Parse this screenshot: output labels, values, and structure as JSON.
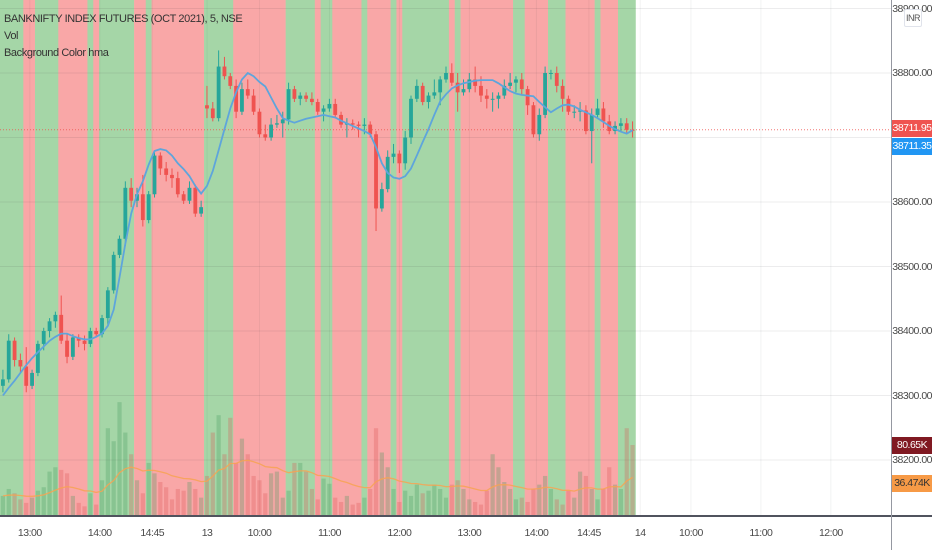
{
  "legend": {
    "symbol": "BANKNIFTY INDEX FUTURES (OCT 2021), 5, NSE",
    "volume": "Vol",
    "indicator": "Background Color hma"
  },
  "price_axis": {
    "currency": "INR",
    "ticks": [
      "38900.00",
      "38800.00",
      "38600.00",
      "38500.00",
      "38400.00",
      "38300.00",
      "38200.00"
    ],
    "last_price": "38711.95",
    "hma_value": "38711.35",
    "volume_value": "80.65K",
    "volume_ma_value": "36.474K"
  },
  "time_axis": {
    "ticks": [
      "13:00",
      "14:00",
      "14:45",
      "13",
      "10:00",
      "11:00",
      "12:00",
      "13:00",
      "14:00",
      "14:45",
      "14",
      "10:00",
      "11:00",
      "12:00"
    ]
  },
  "colors": {
    "bg_bull": "#a5d6a7",
    "bg_bear": "#f9a7a7",
    "candle_up": "#26a69a",
    "candle_down": "#ef5350",
    "hma_line": "#5ea5dc",
    "volume_ma": "#f7a352",
    "last_price_tag": "#ef5350",
    "hma_tag": "#2196f3",
    "volume_tag": "#801922",
    "volume_ma_tag": "#f79a46"
  },
  "chart_data": {
    "type": "candlestick",
    "price_range": [
      38180,
      38920
    ],
    "grid": true,
    "background_runs": [
      [
        "bull",
        4
      ],
      [
        "bear",
        2
      ],
      [
        "bull",
        4
      ],
      [
        "bear",
        5
      ],
      [
        "bull",
        1
      ],
      [
        "bear",
        1
      ],
      [
        "bull",
        6
      ],
      [
        "bear",
        2
      ],
      [
        "bull",
        1
      ],
      [
        "bear",
        9
      ],
      [
        "bull",
        5
      ],
      [
        "bear",
        9
      ],
      [
        "bull",
        5
      ],
      [
        "bear",
        1
      ],
      [
        "bull",
        2
      ],
      [
        "bear",
        5
      ],
      [
        "bull",
        1
      ],
      [
        "bear",
        4
      ],
      [
        "bull",
        1
      ],
      [
        "bear",
        1
      ],
      [
        "bull",
        8
      ],
      [
        "bear",
        1
      ],
      [
        "bull",
        1
      ],
      [
        "bear",
        9
      ],
      [
        "bull",
        2
      ],
      [
        "bear",
        4
      ],
      [
        "bull",
        3
      ],
      [
        "bear",
        5
      ],
      [
        "bull",
        1
      ],
      [
        "bear",
        3
      ],
      [
        "bull",
        3
      ]
    ],
    "ohlc": [
      [
        38315,
        38340,
        38305,
        38325
      ],
      [
        38325,
        38395,
        38320,
        38385
      ],
      [
        38385,
        38390,
        38345,
        38355
      ],
      [
        38355,
        38365,
        38335,
        38345
      ],
      [
        38345,
        38375,
        38305,
        38315
      ],
      [
        38315,
        38340,
        38310,
        38335
      ],
      [
        38335,
        38385,
        38330,
        38380
      ],
      [
        38380,
        38405,
        38370,
        38400
      ],
      [
        38400,
        38420,
        38390,
        38415
      ],
      [
        38415,
        38430,
        38405,
        38425
      ],
      [
        38425,
        38455,
        38380,
        38385
      ],
      [
        38385,
        38395,
        38350,
        38360
      ],
      [
        38360,
        38395,
        38355,
        38390
      ],
      [
        38390,
        38395,
        38375,
        38385
      ],
      [
        38385,
        38393,
        38370,
        38380
      ],
      [
        38380,
        38405,
        38375,
        38400
      ],
      [
        38400,
        38405,
        38390,
        38395
      ],
      [
        38395,
        38425,
        38390,
        38420
      ],
      [
        38420,
        38468,
        38408,
        38463
      ],
      [
        38463,
        38523,
        38458,
        38518
      ],
      [
        38518,
        38548,
        38513,
        38543
      ],
      [
        38543,
        38632,
        38532,
        38622
      ],
      [
        38622,
        38637,
        38592,
        38602
      ],
      [
        38602,
        38622,
        38592,
        38612
      ],
      [
        38612,
        38642,
        38562,
        38572
      ],
      [
        38572,
        38617,
        38567,
        38612
      ],
      [
        38612,
        38677,
        38607,
        38672
      ],
      [
        38672,
        38677,
        38642,
        38652
      ],
      [
        38652,
        38662,
        38632,
        38642
      ],
      [
        38642,
        38652,
        38622,
        38637
      ],
      [
        38637,
        38647,
        38607,
        38612
      ],
      [
        38612,
        38617,
        38597,
        38602
      ],
      [
        38602,
        38632,
        38597,
        38622
      ],
      [
        38622,
        38627,
        38577,
        38582
      ],
      [
        38582,
        38602,
        38577,
        38592
      ],
      [
        38750,
        38780,
        38730,
        38745
      ],
      [
        38745,
        38755,
        38725,
        38730
      ],
      [
        38730,
        38835,
        38725,
        38810
      ],
      [
        38810,
        38825,
        38790,
        38795
      ],
      [
        38795,
        38800,
        38775,
        38780
      ],
      [
        38780,
        38790,
        38730,
        38740
      ],
      [
        38740,
        38785,
        38735,
        38775
      ],
      [
        38775,
        38790,
        38760,
        38765
      ],
      [
        38765,
        38775,
        38735,
        38740
      ],
      [
        38740,
        38745,
        38700,
        38705
      ],
      [
        38705,
        38720,
        38695,
        38700
      ],
      [
        38700,
        38730,
        38695,
        38720
      ],
      [
        38720,
        38735,
        38715,
        38722
      ],
      [
        38722,
        38740,
        38700,
        38728
      ],
      [
        38728,
        38785,
        38720,
        38775
      ],
      [
        38775,
        38780,
        38755,
        38760
      ],
      [
        38760,
        38770,
        38750,
        38765
      ],
      [
        38765,
        38770,
        38755,
        38760
      ],
      [
        38760,
        38770,
        38750,
        38755
      ],
      [
        38755,
        38760,
        38735,
        38740
      ],
      [
        38740,
        38750,
        38725,
        38745
      ],
      [
        38745,
        38760,
        38740,
        38752
      ],
      [
        38752,
        38760,
        38730,
        38735
      ],
      [
        38735,
        38740,
        38715,
        38720
      ],
      [
        38720,
        38730,
        38700,
        38722
      ],
      [
        38722,
        38728,
        38712,
        38720
      ],
      [
        38720,
        38725,
        38700,
        38718
      ],
      [
        38718,
        38730,
        38705,
        38720
      ],
      [
        38720,
        38725,
        38700,
        38705
      ],
      [
        38705,
        38710,
        38555,
        38590
      ],
      [
        38590,
        38630,
        38585,
        38620
      ],
      [
        38620,
        38680,
        38615,
        38670
      ],
      [
        38670,
        38690,
        38660,
        38675
      ],
      [
        38675,
        38680,
        38645,
        38660
      ],
      [
        38660,
        38710,
        38650,
        38700
      ],
      [
        38700,
        38765,
        38690,
        38760
      ],
      [
        38760,
        38790,
        38755,
        38780
      ],
      [
        38780,
        38785,
        38750,
        38755
      ],
      [
        38755,
        38770,
        38745,
        38765
      ],
      [
        38765,
        38790,
        38760,
        38770
      ],
      [
        38770,
        38795,
        38750,
        38790
      ],
      [
        38790,
        38810,
        38785,
        38800
      ],
      [
        38800,
        38815,
        38780,
        38785
      ],
      [
        38785,
        38800,
        38740,
        38770
      ],
      [
        38770,
        38790,
        38765,
        38775
      ],
      [
        38775,
        38800,
        38770,
        38790
      ],
      [
        38790,
        38810,
        38770,
        38780
      ],
      [
        38780,
        38795,
        38755,
        38765
      ],
      [
        38765,
        38775,
        38745,
        38760
      ],
      [
        38760,
        38770,
        38740,
        38760
      ],
      [
        38760,
        38770,
        38745,
        38765
      ],
      [
        38765,
        38790,
        38760,
        38780
      ],
      [
        38780,
        38800,
        38775,
        38785
      ],
      [
        38785,
        38795,
        38770,
        38790
      ],
      [
        38790,
        38800,
        38765,
        38775
      ],
      [
        38775,
        38780,
        38735,
        38750
      ],
      [
        38750,
        38755,
        38700,
        38705
      ],
      [
        38705,
        38745,
        38695,
        38735
      ],
      [
        38735,
        38810,
        38730,
        38800
      ],
      [
        38800,
        38805,
        38790,
        38800
      ],
      [
        38800,
        38810,
        38770,
        38780
      ],
      [
        38780,
        38790,
        38740,
        38760
      ],
      [
        38760,
        38765,
        38735,
        38740
      ],
      [
        38740,
        38750,
        38730,
        38740
      ],
      [
        38740,
        38755,
        38725,
        38742
      ],
      [
        38742,
        38750,
        38705,
        38710
      ],
      [
        38710,
        38745,
        38660,
        38735
      ],
      [
        38735,
        38760,
        38730,
        38745
      ],
      [
        38745,
        38755,
        38715,
        38725
      ],
      [
        38725,
        38735,
        38705,
        38710
      ],
      [
        38710,
        38725,
        38705,
        38718
      ],
      [
        38718,
        38730,
        38710,
        38722
      ],
      [
        38722,
        38730,
        38705,
        38712
      ],
      [
        38712,
        38725,
        38700,
        38711.95
      ]
    ],
    "hma": [
      38300,
      38312,
      38323,
      38335,
      38347,
      38358,
      38367,
      38376,
      38385,
      38391,
      38396,
      38396,
      38392,
      38389,
      38387,
      38387,
      38391,
      38396,
      38408,
      38433,
      38483,
      38535,
      38582,
      38612,
      38632,
      38658,
      38679,
      38682,
      38680,
      38672,
      38660,
      38651,
      38640,
      38625,
      38613,
      38625,
      38648,
      38680,
      38713,
      38745,
      38770,
      38790,
      38800,
      38795,
      38786,
      38779,
      38762,
      38745,
      38730,
      38726,
      38723,
      38726,
      38729,
      38731,
      38733,
      38735,
      38733,
      38731,
      38726,
      38722,
      38718,
      38714,
      38710,
      38705,
      38685,
      38660,
      38645,
      38638,
      38636,
      38640,
      38652,
      38672,
      38693,
      38713,
      38735,
      38756,
      38767,
      38776,
      38781,
      38784,
      38786,
      38788,
      38789,
      38789,
      38789,
      38784,
      38778,
      38772,
      38768,
      38766,
      38765,
      38764,
      38755,
      38747,
      38739,
      38745,
      38750,
      38751,
      38748,
      38743,
      38739,
      38735,
      38730,
      38724,
      38718,
      38713,
      38709,
      38706,
      38711.35
    ],
    "volume_k": [
      22,
      30,
      25,
      18,
      14,
      20,
      28,
      32,
      50,
      55,
      52,
      48,
      22,
      14,
      10,
      25,
      12,
      40,
      100,
      85,
      130,
      95,
      70,
      40,
      25,
      60,
      48,
      38,
      32,
      18,
      30,
      28,
      38,
      30,
      20,
      45,
      95,
      115,
      70,
      112,
      60,
      88,
      70,
      45,
      40,
      25,
      48,
      50,
      20,
      28,
      60,
      60,
      50,
      30,
      18,
      42,
      36,
      20,
      15,
      22,
      12,
      14,
      20,
      30,
      100,
      72,
      55,
      30,
      15,
      28,
      22,
      35,
      25,
      28,
      35,
      30,
      20,
      35,
      40,
      30,
      18,
      15,
      12,
      28,
      70,
      55,
      38,
      30,
      18,
      20,
      15,
      30,
      35,
      45,
      30,
      18,
      12,
      28,
      20,
      50,
      45,
      30,
      18,
      30,
      55,
      35,
      30,
      100,
      80.65
    ]
  }
}
